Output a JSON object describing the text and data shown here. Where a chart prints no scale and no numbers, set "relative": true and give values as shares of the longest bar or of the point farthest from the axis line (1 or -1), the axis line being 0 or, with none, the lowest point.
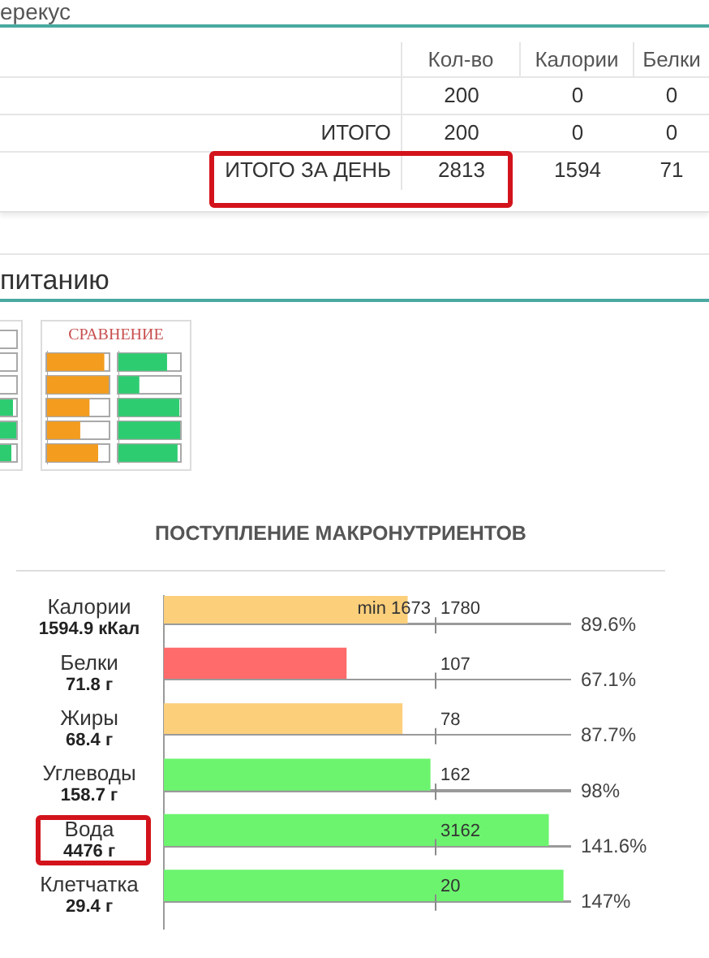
{
  "chart_data": [
    {
      "type": "heatmap",
      "annotations": [
        "ерекус"
      ],
      "categories": [
        "Кол-во",
        "Калории",
        "Белки"
      ],
      "y_categories": [
        null,
        "ИТОГО",
        "ИТОГО ЗА ДЕНЬ"
      ],
      "cells": [
        [
          200,
          0,
          0
        ],
        [
          200,
          0,
          0
        ],
        [
          2813,
          1594,
          71
        ]
      ],
      "data_labels": true
    },
    {
      "type": "bar",
      "orientation": "horizontal",
      "relative": true,
      "title": "питанию",
      "subtitle": "СРАВНЕНИЕ",
      "categories": [
        null,
        null,
        null,
        null,
        null
      ],
      "values": [
        0.92,
        1,
        0.68,
        0.53,
        0.82
      ],
      "color": "#f39c1e",
      "tick_labels": false
    },
    {
      "type": "bar",
      "orientation": "horizontal",
      "relative": true,
      "categories": [
        null,
        null,
        null,
        null,
        null
      ],
      "values": [
        0.78,
        0.33,
        0.98,
        1,
        0.95
      ],
      "color": "#2ecc71",
      "tick_labels": false
    },
    {
      "type": "bar",
      "orientation": "horizontal",
      "title": "ПОСТУПЛЕНИЕ МАКРОНУТРИЕНТОВ",
      "categories": [
        "Калории\n1594.9 кКал",
        "Белки\n71.8 г",
        "Жиры\n68.4 г",
        "Углеводы\n158.7 г",
        "Вода\n4476 г",
        "Клетчатка\n29.4 г"
      ],
      "values": [
        89.6,
        67.1,
        87.7,
        98,
        141.6,
        147
      ],
      "colors": [
        "#fccf7b",
        "#ff6b6b",
        "#fccf7b",
        "#6cf46e",
        "#6cf46e",
        "#6cf46e"
      ],
      "value_labels": [
        "89.6%",
        "67.1%",
        "87.7%",
        "98%",
        "141.6%",
        "147%"
      ],
      "xlim": [
        0,
        150
      ],
      "tick_labels": "y",
      "grid": "y",
      "ref_lines": [
        {
          "axis": "x",
          "value": 100,
          "line_style": "dashed"
        }
      ],
      "annotations": [
        "min 1673",
        "1780",
        "107",
        "78",
        "162",
        "3162",
        "20"
      ]
    }
  ]
}
